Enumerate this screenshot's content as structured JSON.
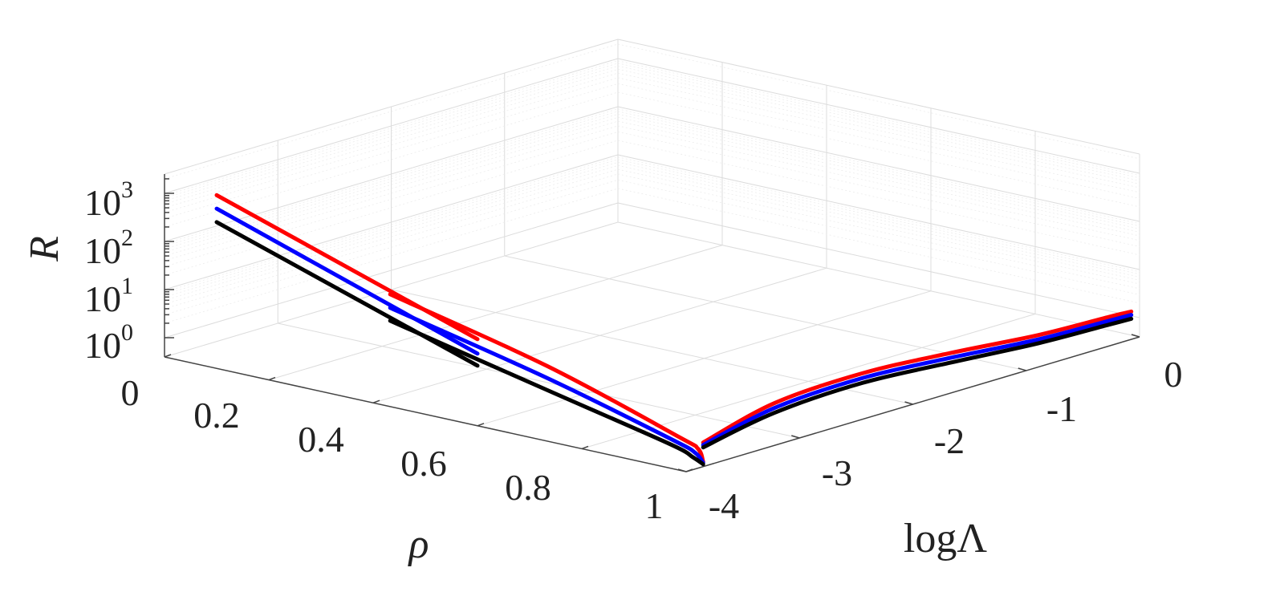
{
  "chart_data": {
    "type": "line",
    "xlabel": "ρ",
    "ylabel": "logΛ",
    "zlabel": "R",
    "x_ticks": [
      "0.2",
      "0.4",
      "0.6",
      "0.8",
      "1"
    ],
    "y_ticks": [
      "-4",
      "-3",
      "-2",
      "-1",
      "0"
    ],
    "z_ticks": [
      {
        "base": "10",
        "exp": "0"
      },
      {
        "base": "10",
        "exp": "1"
      },
      {
        "base": "10",
        "exp": "2"
      },
      {
        "base": "10",
        "exp": "3"
      }
    ],
    "corner_tick": "0",
    "xlim": [
      0,
      1
    ],
    "ylim": [
      -4,
      0
    ],
    "zscale": "log",
    "zlim_log10": [
      -0.4,
      3.4
    ],
    "grid": true,
    "colors": {
      "first": "#ff0000",
      "second": "#0000ff",
      "third": "#000000"
    },
    "series": [
      {
        "color": "#ff0000",
        "segments": [
          [
            [
              0.1,
              -4,
              3.2
            ],
            [
              0.6,
              -4,
              1.4
            ]
          ],
          [
            [
              0.4,
              -3.85,
              1.75
            ],
            [
              0.7,
              -3.85,
              0.98
            ],
            [
              0.95,
              -3.85,
              0.12
            ],
            [
              0.99,
              -3.85,
              -0.05
            ],
            [
              1.0,
              -3.85,
              -0.3
            ]
          ],
          [
            [
              1.0,
              -3.85,
              0.1
            ],
            [
              0.995,
              -3.2,
              0.45
            ],
            [
              0.99,
              -2.4,
              0.5
            ],
            [
              0.985,
              -1.6,
              0.35
            ],
            [
              0.98,
              -0.8,
              0.15
            ],
            [
              0.985,
              -0.2,
              0.12
            ],
            [
              0.995,
              -0.05,
              0.15
            ]
          ]
        ]
      },
      {
        "color": "#0000ff",
        "segments": [
          [
            [
              0.1,
              -4,
              2.92
            ],
            [
              0.6,
              -4,
              1.1
            ]
          ],
          [
            [
              0.4,
              -3.85,
              1.47
            ],
            [
              0.7,
              -3.85,
              0.73
            ],
            [
              0.94,
              -3.85,
              0.02
            ],
            [
              0.985,
              -3.85,
              -0.15
            ],
            [
              1.0,
              -3.85,
              -0.32
            ]
          ],
          [
            [
              1.0,
              -3.85,
              0.05
            ],
            [
              0.995,
              -3.2,
              0.35
            ],
            [
              0.99,
              -2.4,
              0.4
            ],
            [
              0.985,
              -1.6,
              0.25
            ],
            [
              0.98,
              -0.8,
              0.06
            ],
            [
              0.985,
              -0.2,
              0.04
            ],
            [
              0.995,
              -0.05,
              0.08
            ]
          ]
        ]
      },
      {
        "color": "#000000",
        "segments": [
          [
            [
              0.1,
              -4,
              2.64
            ],
            [
              0.6,
              -4,
              0.85
            ]
          ],
          [
            [
              0.4,
              -3.85,
              1.2
            ],
            [
              0.7,
              -3.85,
              0.48
            ],
            [
              0.935,
              -3.85,
              -0.08
            ],
            [
              0.98,
              -3.85,
              -0.25
            ],
            [
              1.0,
              -3.85,
              -0.35
            ]
          ],
          [
            [
              1.0,
              -3.85,
              0.0
            ],
            [
              0.995,
              -3.2,
              0.25
            ],
            [
              0.99,
              -2.4,
              0.3
            ],
            [
              0.985,
              -1.6,
              0.15
            ],
            [
              0.98,
              -0.8,
              -0.02
            ],
            [
              0.985,
              -0.2,
              -0.04
            ],
            [
              0.995,
              -0.05,
              0.0
            ]
          ]
        ]
      }
    ]
  }
}
